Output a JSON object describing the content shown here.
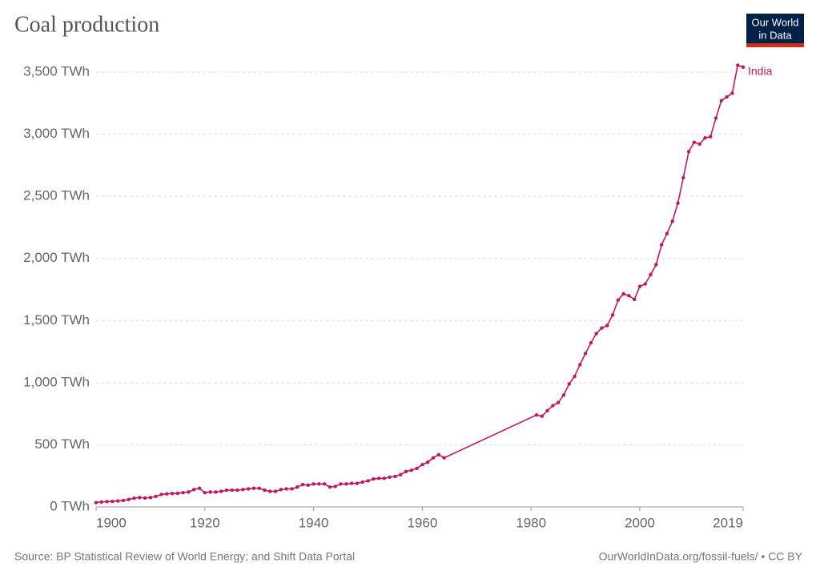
{
  "logo": [
    "Our World",
    "in Data"
  ],
  "chart_data": {
    "type": "line",
    "title": "Coal production",
    "source": "Source: BP Statistical Review of World Energy; and Shift Data Portal",
    "credit": "OurWorldInData.org/fossil-fuels/ • CC BY",
    "x": [
      1900,
      1901,
      1902,
      1903,
      1904,
      1905,
      1906,
      1907,
      1908,
      1909,
      1910,
      1911,
      1912,
      1913,
      1914,
      1915,
      1916,
      1917,
      1918,
      1919,
      1920,
      1921,
      1922,
      1923,
      1924,
      1925,
      1926,
      1927,
      1928,
      1929,
      1930,
      1931,
      1932,
      1933,
      1934,
      1935,
      1936,
      1937,
      1938,
      1939,
      1940,
      1941,
      1942,
      1943,
      1944,
      1945,
      1946,
      1947,
      1948,
      1949,
      1950,
      1951,
      1952,
      1953,
      1954,
      1955,
      1956,
      1957,
      1958,
      1959,
      1960,
      1961,
      1962,
      1963,
      1964,
      1981,
      1982,
      1983,
      1984,
      1985,
      1986,
      1987,
      1988,
      1989,
      1990,
      1991,
      1992,
      1993,
      1994,
      1995,
      1996,
      1997,
      1998,
      1999,
      2000,
      2001,
      2002,
      2003,
      2004,
      2005,
      2006,
      2007,
      2008,
      2009,
      2010,
      2011,
      2012,
      2013,
      2014,
      2015,
      2016,
      2017,
      2018,
      2019
    ],
    "series": [
      {
        "name": "India",
        "color": "#c2185b",
        "values": [
          35,
          40,
          43,
          45,
          48,
          52,
          60,
          70,
          75,
          72,
          75,
          85,
          100,
          105,
          108,
          110,
          115,
          120,
          140,
          150,
          115,
          120,
          120,
          125,
          135,
          135,
          135,
          140,
          145,
          150,
          150,
          135,
          125,
          125,
          140,
          145,
          145,
          160,
          180,
          175,
          185,
          185,
          185,
          160,
          165,
          185,
          185,
          190,
          190,
          200,
          210,
          225,
          230,
          230,
          240,
          245,
          260,
          285,
          295,
          310,
          340,
          360,
          395,
          420,
          395,
          740,
          730,
          775,
          815,
          840,
          900,
          990,
          1050,
          1145,
          1235,
          1320,
          1395,
          1440,
          1460,
          1545,
          1665,
          1715,
          1700,
          1670,
          1775,
          1795,
          1870,
          1950,
          2110,
          2200,
          2300,
          2445,
          2650,
          2860,
          2935,
          2920,
          2970,
          2980,
          3130,
          3270,
          3300,
          3330,
          3555,
          3540
        ]
      }
    ],
    "xlim": [
      1900,
      2019
    ],
    "xticks": [
      1900,
      1920,
      1940,
      1960,
      1980,
      2000,
      2019
    ],
    "ylim": [
      0,
      3500
    ],
    "yticks": [
      {
        "value": 0,
        "label": "0 TWh"
      },
      {
        "value": 500,
        "label": "500 TWh"
      },
      {
        "value": 1000,
        "label": "1,000 TWh"
      },
      {
        "value": 1500,
        "label": "1,500 TWh"
      },
      {
        "value": 2000,
        "label": "2,000 TWh"
      },
      {
        "value": 2500,
        "label": "2,500 TWh"
      },
      {
        "value": 3000,
        "label": "3,000 TWh"
      },
      {
        "value": 3500,
        "label": "3,500 TWh"
      }
    ],
    "grid": true
  }
}
